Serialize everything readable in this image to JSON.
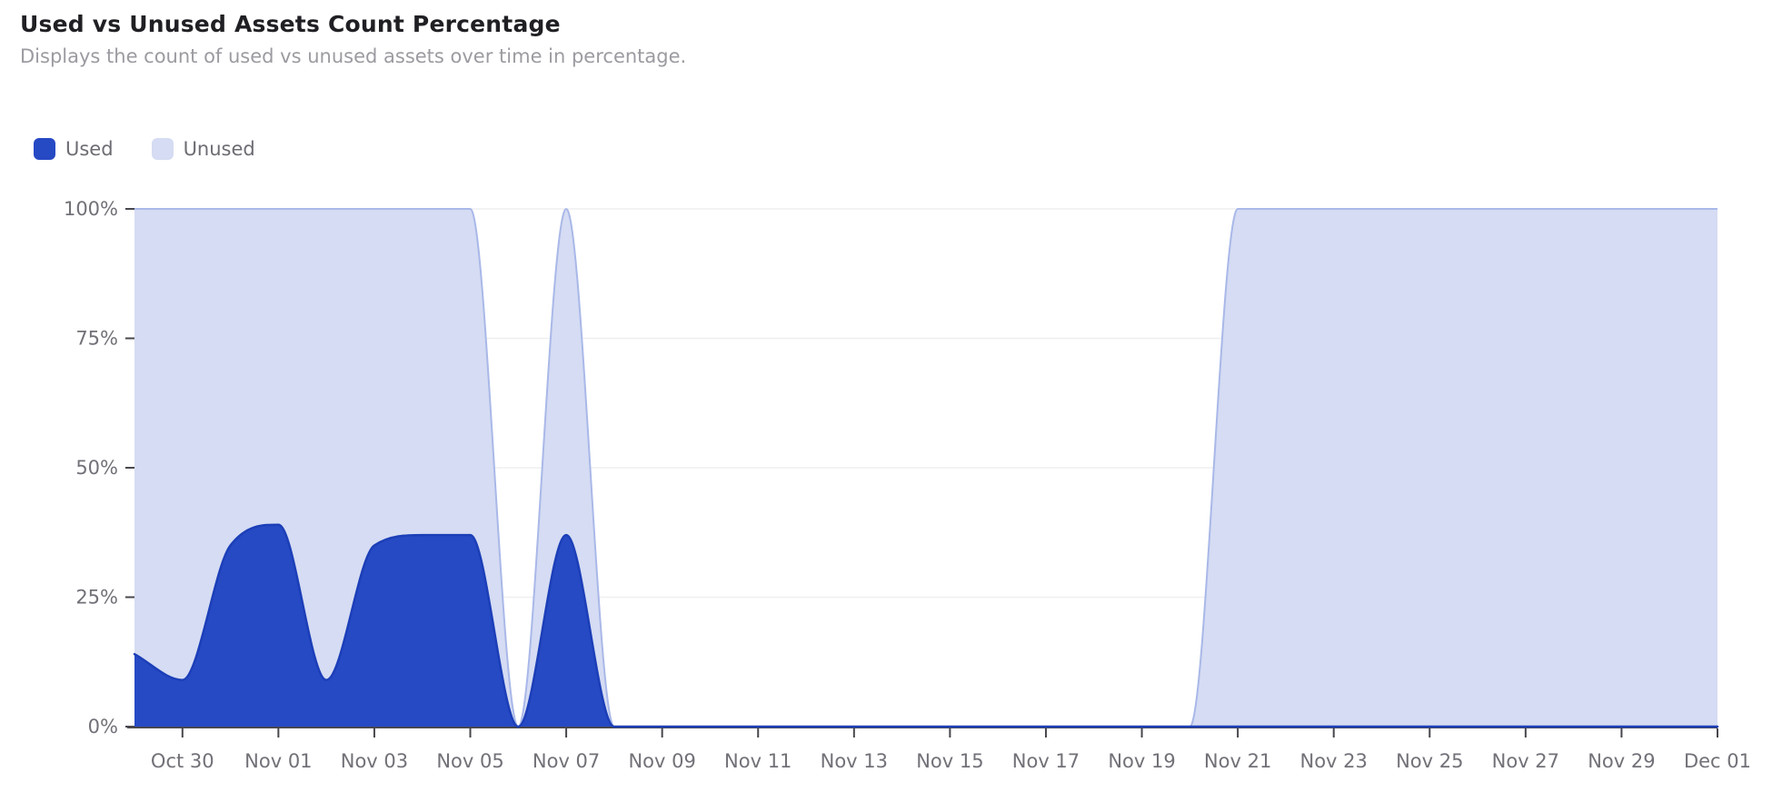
{
  "header": {
    "title": "Used vs Unused Assets Count Percentage",
    "subtitle": "Displays the count of used vs unused assets over time in percentage."
  },
  "legend": {
    "items": [
      {
        "label": "Used",
        "color": "#2649c4"
      },
      {
        "label": "Unused",
        "color": "#d5dcf3"
      }
    ]
  },
  "chart_data": {
    "type": "area",
    "stacked": true,
    "curve": "monotone",
    "unit": "%",
    "title": "Used vs Unused Assets Count Percentage",
    "xlabel": "",
    "ylabel": "",
    "ylim": [
      0,
      100
    ],
    "grid": "horizontal",
    "legend_position": "top-left",
    "x": [
      "Oct 29",
      "Oct 30",
      "Oct 31",
      "Nov 01",
      "Nov 02",
      "Nov 03",
      "Nov 04",
      "Nov 05",
      "Nov 06",
      "Nov 07",
      "Nov 08",
      "Nov 09",
      "Nov 10",
      "Nov 11",
      "Nov 12",
      "Nov 13",
      "Nov 14",
      "Nov 15",
      "Nov 16",
      "Nov 17",
      "Nov 18",
      "Nov 19",
      "Nov 20",
      "Nov 21",
      "Nov 22",
      "Nov 23",
      "Nov 24",
      "Nov 25",
      "Nov 26",
      "Nov 27",
      "Nov 28",
      "Nov 29",
      "Nov 30",
      "Dec 01"
    ],
    "x_tick_indices": [
      1,
      3,
      5,
      7,
      9,
      11,
      13,
      15,
      17,
      19,
      21,
      23,
      25,
      27,
      29,
      31,
      33
    ],
    "x_tick_labels": [
      "Oct 30",
      "Nov 01",
      "Nov 03",
      "Nov 05",
      "Nov 07",
      "Nov 09",
      "Nov 11",
      "Nov 13",
      "Nov 15",
      "Nov 17",
      "Nov 19",
      "Nov 21",
      "Nov 23",
      "Nov 25",
      "Nov 27",
      "Nov 29",
      "Dec 01"
    ],
    "y_ticks": [
      0,
      25,
      50,
      75,
      100
    ],
    "y_tick_labels": [
      "0%",
      "25%",
      "50%",
      "75%",
      "100%"
    ],
    "series": [
      {
        "name": "Used",
        "fill": "#2649c4",
        "stroke": "#1c3fb8",
        "values": [
          14,
          9,
          35,
          39,
          9,
          35,
          37,
          37,
          0,
          37,
          0,
          0,
          0,
          0,
          0,
          0,
          0,
          0,
          0,
          0,
          0,
          0,
          0,
          0,
          0,
          0,
          0,
          0,
          0,
          0,
          0,
          0,
          0,
          0
        ]
      },
      {
        "name": "Unused",
        "fill": "#d5dcf3",
        "stroke": "#a9b8e8",
        "values": [
          86,
          91,
          65,
          61,
          91,
          65,
          63,
          63,
          0,
          63,
          0,
          0,
          0,
          0,
          0,
          0,
          0,
          0,
          0,
          0,
          0,
          0,
          0,
          100,
          100,
          100,
          100,
          100,
          100,
          100,
          100,
          100,
          100,
          100
        ]
      }
    ]
  },
  "axis_style": {
    "axis_line_color": "#47474d",
    "tick_color": "#47474d",
    "label_color": "#717178",
    "grid_color": "#efeff1"
  }
}
